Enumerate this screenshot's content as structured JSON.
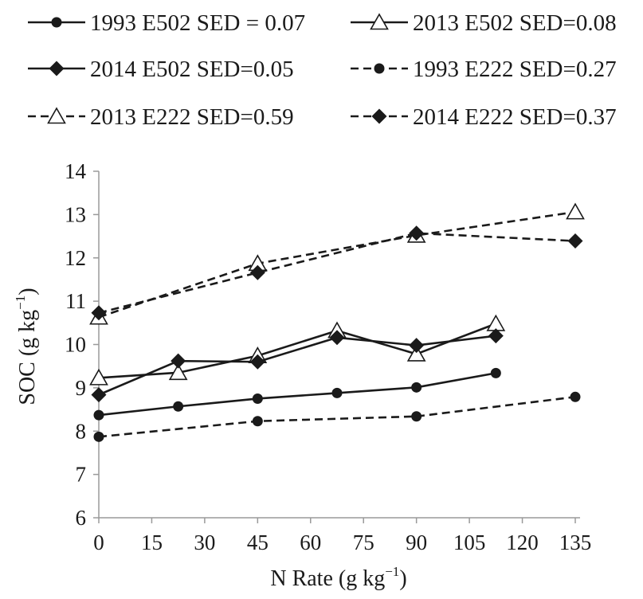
{
  "chart_data": {
    "type": "line",
    "title": "",
    "xlabel": "N Rate (g kg",
    "xlabel_sup": "−1",
    "xlabel_close": ")",
    "ylabel": "SOC (g kg",
    "ylabel_sup": "−1",
    "ylabel_close": ")",
    "xticks": [
      0,
      15,
      30,
      45,
      60,
      75,
      90,
      105,
      120,
      135
    ],
    "yticks": [
      6,
      7,
      8,
      9,
      10,
      11,
      12,
      13,
      14
    ],
    "xlim": [
      0,
      135
    ],
    "ylim": [
      6,
      14
    ],
    "grid": false,
    "legend_position": "top",
    "series": [
      {
        "name": "1993 E502 SED = 0.07",
        "line": "solid",
        "marker": "circle",
        "x": [
          0,
          22.5,
          45,
          67.5,
          90,
          112.5
        ],
        "y": [
          8.37,
          8.57,
          8.75,
          8.88,
          9.01,
          9.34
        ]
      },
      {
        "name": "2013 E502 SED=0.08",
        "line": "solid",
        "marker": "triangle-open",
        "x": [
          0,
          22.5,
          45,
          67.5,
          90,
          112.5
        ],
        "y": [
          9.23,
          9.35,
          9.74,
          10.32,
          9.78,
          10.48
        ]
      },
      {
        "name": "2014 E502 SED=0.05",
        "line": "solid",
        "marker": "diamond",
        "x": [
          0,
          22.5,
          45,
          67.5,
          90,
          112.5
        ],
        "y": [
          8.84,
          9.62,
          9.6,
          10.16,
          9.98,
          10.2
        ]
      },
      {
        "name": "1993 E222 SED=0.27",
        "line": "dashed",
        "marker": "circle",
        "x": [
          0,
          45,
          90,
          135
        ],
        "y": [
          7.87,
          8.23,
          8.34,
          8.79
        ]
      },
      {
        "name": "2013 E222 SED=0.59",
        "line": "dashed",
        "marker": "triangle-open",
        "x": [
          0,
          45,
          90,
          135
        ],
        "y": [
          10.63,
          11.87,
          12.52,
          13.06
        ]
      },
      {
        "name": "2014 E222 SED=0.37",
        "line": "dashed",
        "marker": "diamond",
        "x": [
          0,
          45,
          90,
          135
        ],
        "y": [
          10.73,
          11.66,
          12.57,
          12.39
        ]
      }
    ]
  }
}
